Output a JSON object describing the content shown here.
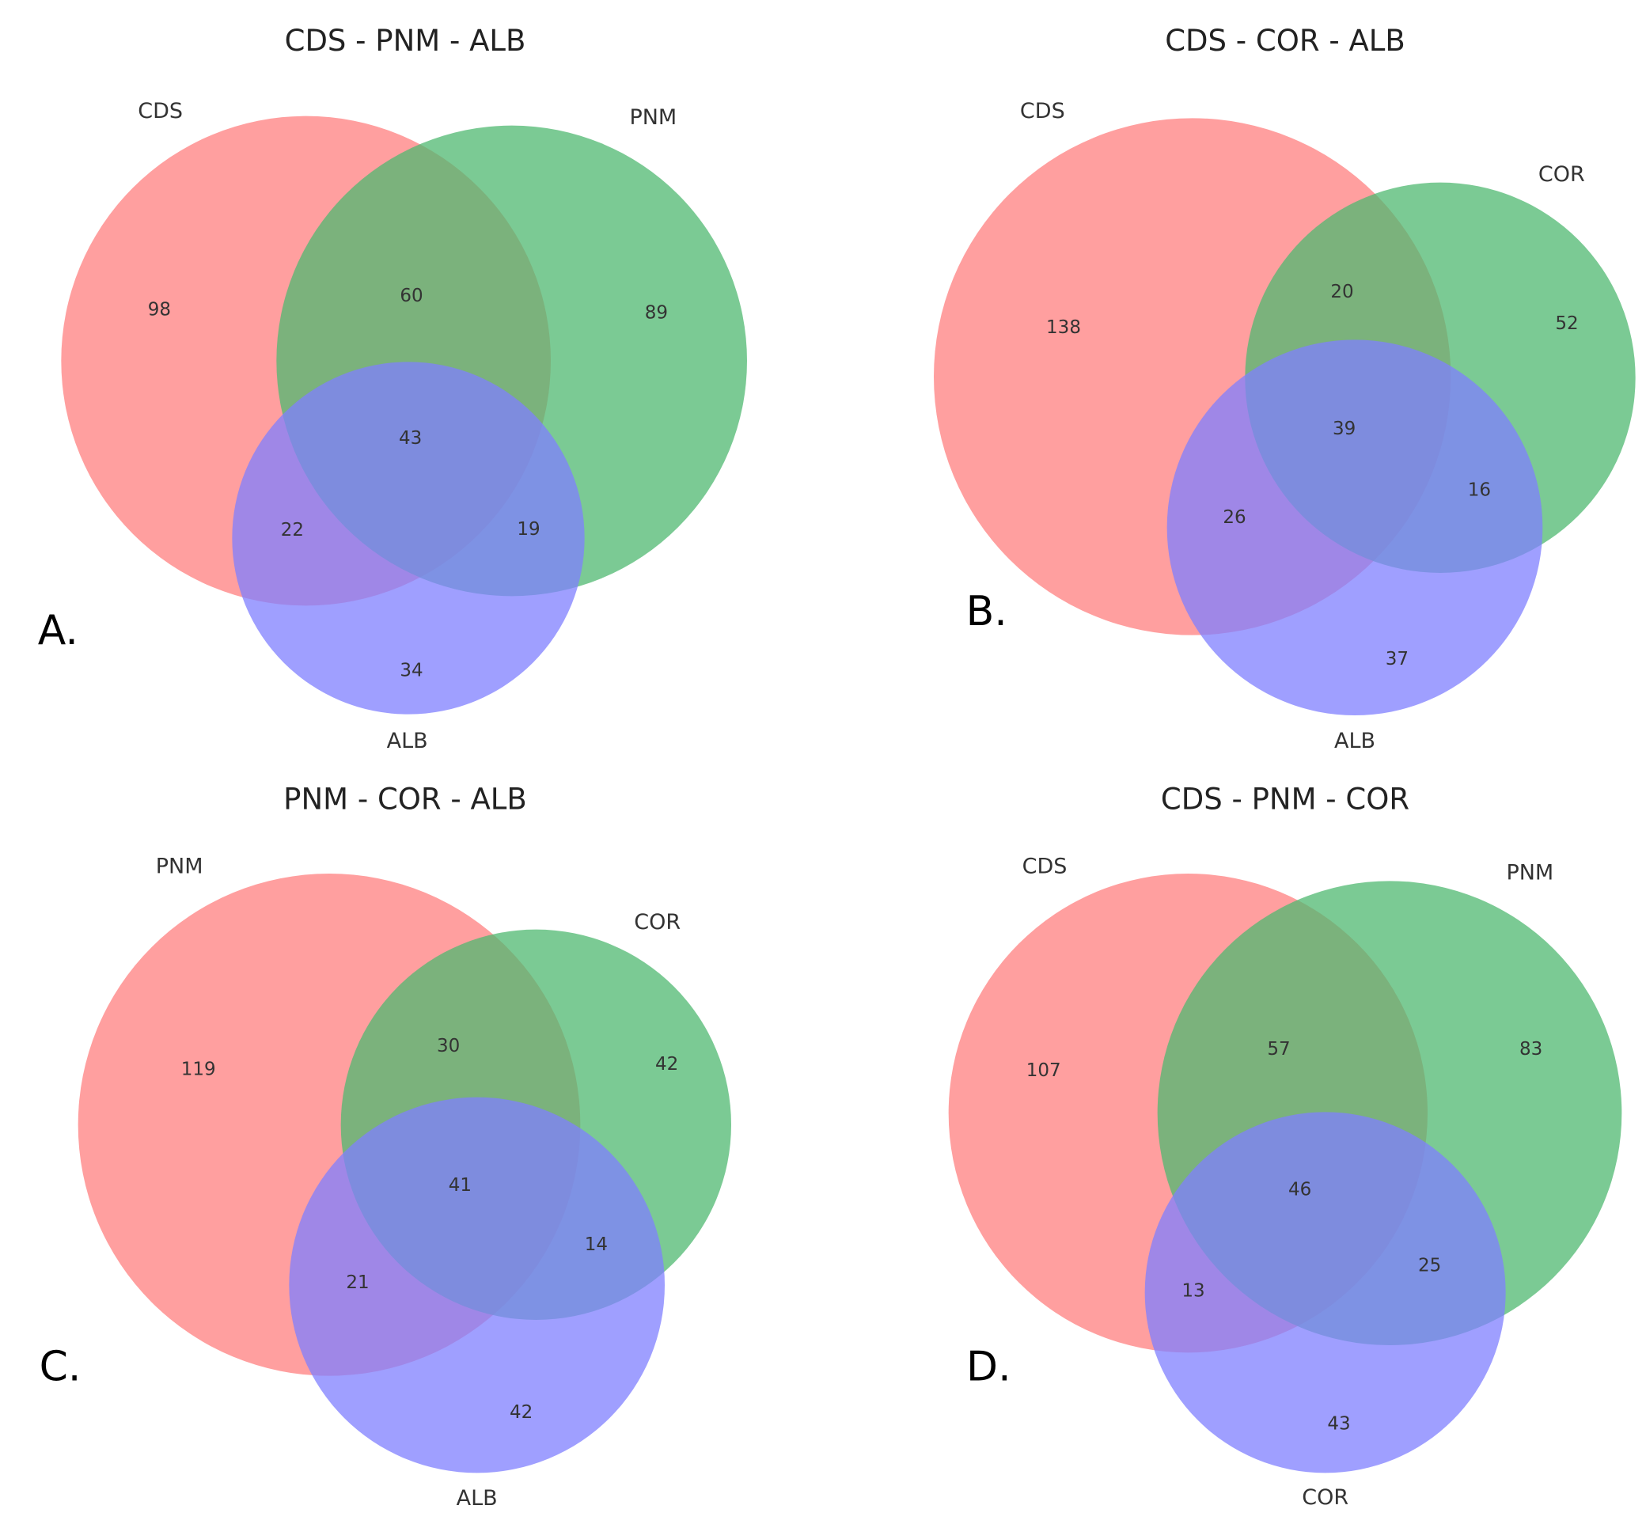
{
  "colors": {
    "set1": "#ff7f7f",
    "set2": "#4fb870",
    "set3": "#7f7fff"
  },
  "chart_data": [
    {
      "type": "venn3",
      "panel": "A.",
      "title": "CDS - PNM - ALB",
      "sets": [
        "CDS",
        "PNM",
        "ALB"
      ],
      "regions": {
        "100": 98,
        "010": 89,
        "110": 60,
        "001": 34,
        "101": 22,
        "011": 19,
        "111": 43
      }
    },
    {
      "type": "venn3",
      "panel": "B.",
      "title": "CDS - COR - ALB",
      "sets": [
        "CDS",
        "COR",
        "ALB"
      ],
      "regions": {
        "100": 138,
        "010": 52,
        "110": 20,
        "001": 37,
        "101": 26,
        "011": 16,
        "111": 39
      }
    },
    {
      "type": "venn3",
      "panel": "C.",
      "title": "PNM - COR - ALB",
      "sets": [
        "PNM",
        "COR",
        "ALB"
      ],
      "regions": {
        "100": 119,
        "010": 42,
        "110": 30,
        "001": 42,
        "101": 21,
        "011": 14,
        "111": 41
      }
    },
    {
      "type": "venn3",
      "panel": "D.",
      "title": "CDS - PNM - COR",
      "sets": [
        "CDS",
        "PNM",
        "COR"
      ],
      "regions": {
        "100": 107,
        "010": 83,
        "110": 57,
        "001": 43,
        "101": 13,
        "011": 25,
        "111": 46
      }
    }
  ]
}
